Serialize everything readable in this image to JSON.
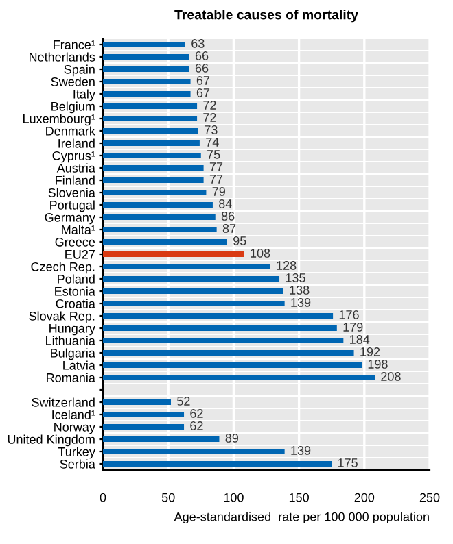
{
  "chart_data": {
    "type": "bar",
    "orientation": "horizontal",
    "title": "Treatable causes of mortality",
    "xlabel": "Age-standardised  rate per 100 000 population",
    "categories": [
      "France¹",
      "Netherlands",
      "Spain",
      "Sweden",
      "Italy",
      "Belgium",
      "Luxembourg¹",
      "Denmark",
      "Ireland",
      "Cyprus¹",
      "Austria",
      "Finland",
      "Slovenia",
      "Portugal",
      "Germany",
      "Malta¹",
      "Greece",
      "EU27",
      "Czech Rep.",
      "Poland",
      "Estonia",
      "Croatia",
      "Slovak Rep.",
      "Hungary",
      "Lithuania",
      "Bulgaria",
      "Latvia",
      "Romania",
      null,
      "Switzerland",
      "Iceland¹",
      "Norway",
      "United Kingdom",
      "Turkey",
      "Serbia"
    ],
    "values": [
      63,
      66,
      66,
      67,
      67,
      72,
      72,
      73,
      74,
      75,
      77,
      77,
      79,
      84,
      86,
      87,
      95,
      108,
      128,
      135,
      138,
      139,
      176,
      179,
      184,
      192,
      198,
      208,
      null,
      52,
      62,
      62,
      89,
      139,
      175
    ],
    "colors": [
      "#0066b3",
      "#0066b3",
      "#0066b3",
      "#0066b3",
      "#0066b3",
      "#0066b3",
      "#0066b3",
      "#0066b3",
      "#0066b3",
      "#0066b3",
      "#0066b3",
      "#0066b3",
      "#0066b3",
      "#0066b3",
      "#0066b3",
      "#0066b3",
      "#0066b3",
      "#d93a12",
      "#0066b3",
      "#0066b3",
      "#0066b3",
      "#0066b3",
      "#0066b3",
      "#0066b3",
      "#0066b3",
      "#0066b3",
      "#0066b3",
      "#0066b3",
      "#0066b3",
      "#0066b3",
      "#0066b3",
      "#0066b3",
      "#0066b3",
      "#0066b3",
      "#0066b3"
    ],
    "data_labels": true,
    "xlim": [
      0,
      250
    ],
    "xticks": [
      0,
      50,
      100,
      150,
      200,
      250
    ],
    "grid": "x"
  }
}
